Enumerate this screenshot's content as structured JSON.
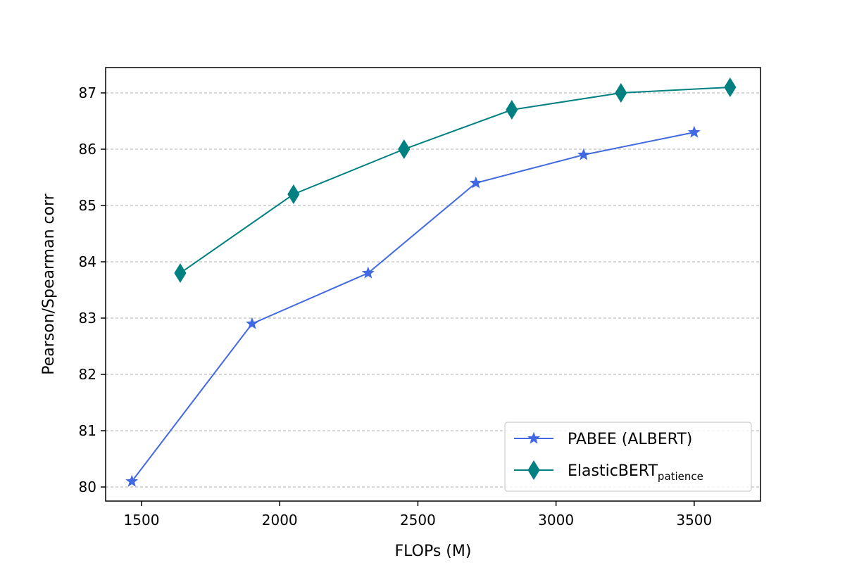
{
  "chart_data": {
    "type": "line",
    "xlabel": "FLOPs (M)",
    "ylabel": "Pearson/Spearman corr",
    "xlim": [
      1370,
      3740
    ],
    "ylim": [
      79.75,
      87.45
    ],
    "xticks": [
      1500,
      2000,
      2500,
      3000,
      3500
    ],
    "yticks": [
      80,
      81,
      82,
      83,
      84,
      85,
      86,
      87
    ],
    "grid": "y-dashed",
    "legend_position": "lower-right",
    "series": [
      {
        "name": "PABEE (ALBERT)",
        "color": "#4169e1",
        "marker": "star",
        "x": [
          1465,
          1900,
          2320,
          2710,
          3100,
          3500
        ],
        "y": [
          80.1,
          82.9,
          83.8,
          85.4,
          85.9,
          86.3
        ]
      },
      {
        "name": "ElasticBERT",
        "name_subscript": "patience",
        "color": "#008080",
        "marker": "thin-diamond",
        "x": [
          1640,
          2050,
          2450,
          2840,
          3235,
          3630
        ],
        "y": [
          83.8,
          85.2,
          86.0,
          86.7,
          87.0,
          87.1
        ]
      }
    ]
  }
}
